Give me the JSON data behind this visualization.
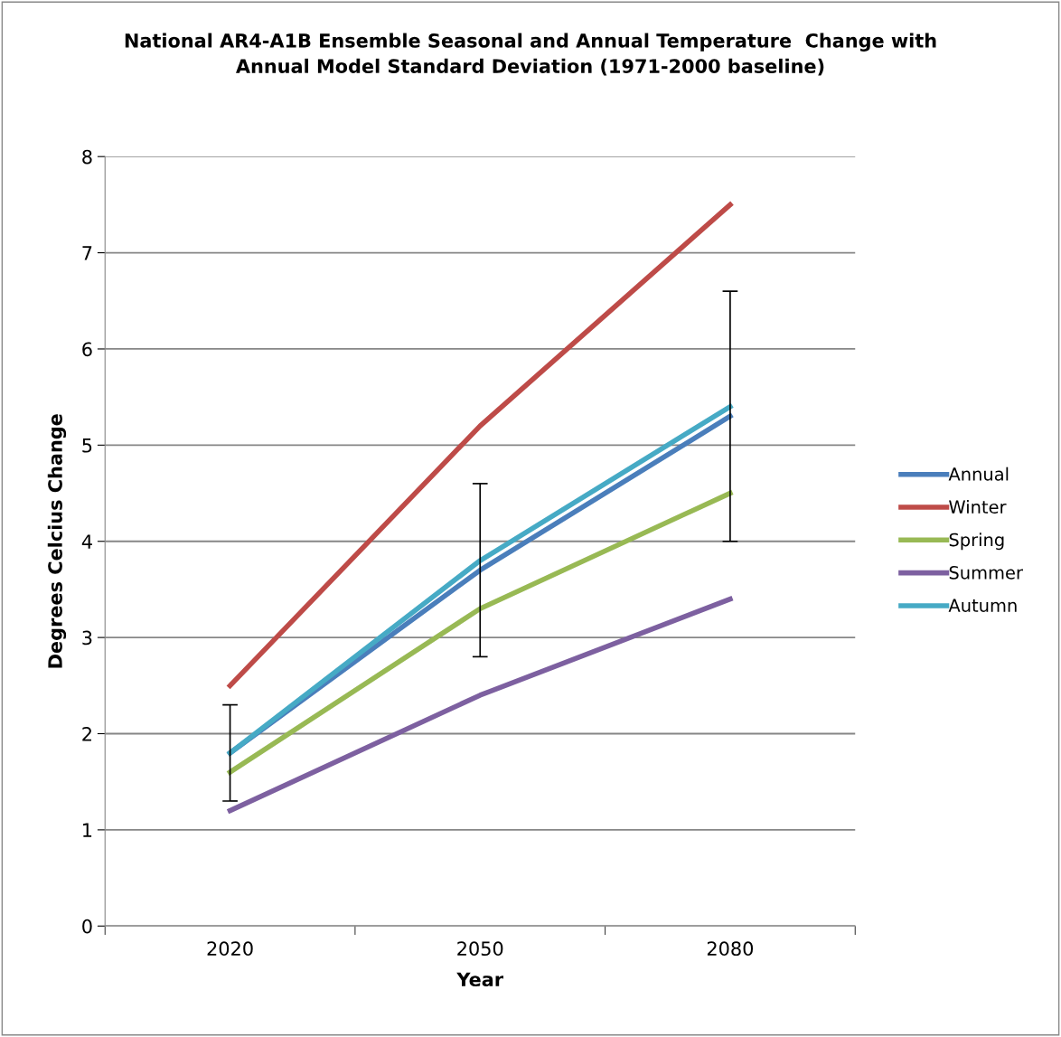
{
  "chart_data": {
    "type": "line",
    "title": "National AR4-A1B Ensemble Seasonal and Annual Temperature  Change with\nAnnual Model Standard Deviation (1971-2000 baseline)",
    "xlabel": "Year",
    "ylabel": "Degrees Celcius Change",
    "categories": [
      "2020",
      "2050",
      "2080"
    ],
    "series": [
      {
        "name": "Annual",
        "color": "#4a7ebb",
        "values": [
          1.8,
          3.7,
          5.3
        ],
        "errors": [
          0.5,
          0.9,
          1.3
        ]
      },
      {
        "name": "Winter",
        "color": "#be4b48",
        "values": [
          2.5,
          5.2,
          7.5
        ]
      },
      {
        "name": "Spring",
        "color": "#98b954",
        "values": [
          1.6,
          3.3,
          4.5
        ]
      },
      {
        "name": "Summer",
        "color": "#7d60a0",
        "values": [
          1.2,
          2.4,
          3.4
        ]
      },
      {
        "name": "Autumn",
        "color": "#46aac5",
        "values": [
          1.8,
          3.8,
          5.4
        ]
      }
    ],
    "ylim": [
      0,
      8
    ],
    "yticks": [
      0,
      1,
      2,
      3,
      4,
      5,
      6,
      7,
      8
    ],
    "grid": "y",
    "legend": "right",
    "marker": "none",
    "line_style": "solid"
  }
}
